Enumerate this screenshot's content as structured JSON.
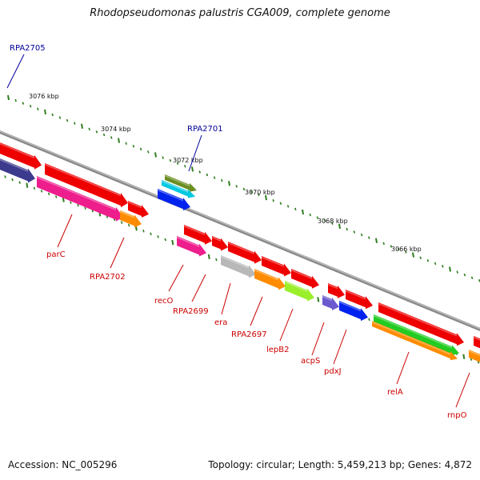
{
  "title": "Rhodopseudomonas palustris CGA009, complete genome",
  "footer": {
    "accession": "Accession: NC_005296",
    "summary": "Topology: circular; Length: 5,459,213 bp; Genes: 4,872"
  },
  "scale_labels": [
    "3076 kbp",
    "3074 kbp",
    "3072 kbp",
    "3070 kbp",
    "3068 kbp",
    "3066 kbp"
  ],
  "gene_labels": [
    {
      "key": "RPA2705",
      "text": "RPA2705",
      "color": "blue"
    },
    {
      "key": "RPA2701",
      "text": "RPA2701",
      "color": "blue"
    },
    {
      "key": "parC",
      "text": "parC",
      "color": "red"
    },
    {
      "key": "RPA2702",
      "text": "RPA2702",
      "color": "red"
    },
    {
      "key": "recO",
      "text": "recO",
      "color": "red"
    },
    {
      "key": "RPA2699",
      "text": "RPA2699",
      "color": "red"
    },
    {
      "key": "era",
      "text": "era",
      "color": "red"
    },
    {
      "key": "RPA2697",
      "text": "RPA2697",
      "color": "red"
    },
    {
      "key": "lepB2",
      "text": "lepB2",
      "color": "red"
    },
    {
      "key": "acpS",
      "text": "acpS",
      "color": "red"
    },
    {
      "key": "pdxJ",
      "text": "pdxJ",
      "color": "red"
    },
    {
      "key": "relA",
      "text": "relA",
      "color": "red"
    },
    {
      "key": "rnpO",
      "text": "rnpO",
      "color": "red"
    }
  ],
  "colors": {
    "backbone": "#888888",
    "ticks": "#2e7d1e",
    "gene_red": "#ee0000",
    "gene_magenta": "#ee1e8c",
    "gene_orange": "#ff8c00",
    "gene_blue": "#0022ee",
    "gene_slate": "#6a5acd",
    "gene_dark_slate": "#3c3a8c",
    "gene_olive": "#6b8e23",
    "gene_cyan": "#00c8e0",
    "gene_gray": "#b8b8b8",
    "gene_lime": "#9aee2a",
    "gene_green": "#22cc22",
    "label_red": "#cc0000",
    "label_blue": "#00009a"
  }
}
